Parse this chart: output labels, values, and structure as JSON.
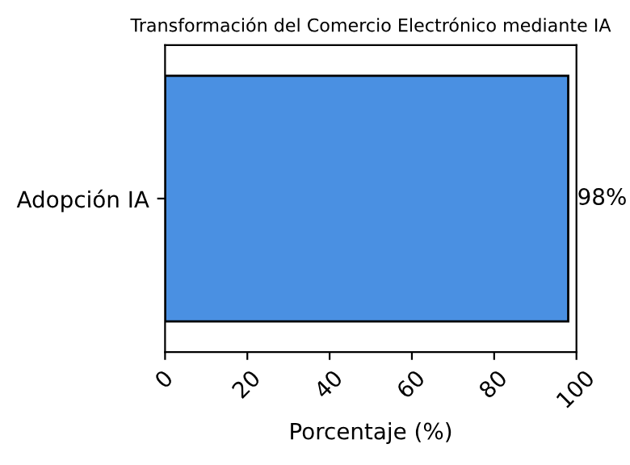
{
  "chart_data": {
    "type": "bar",
    "orientation": "horizontal",
    "title": "Transformación del Comercio Electrónico mediante IA",
    "xlabel": "Porcentaje (%)",
    "categories": [
      "Adopción IA"
    ],
    "values": [
      98
    ],
    "value_labels": [
      "98%"
    ],
    "color": "#4a90e2",
    "xlim": [
      0,
      100
    ],
    "xticks": [
      0,
      20,
      40,
      60,
      80,
      100
    ],
    "grid": false
  }
}
